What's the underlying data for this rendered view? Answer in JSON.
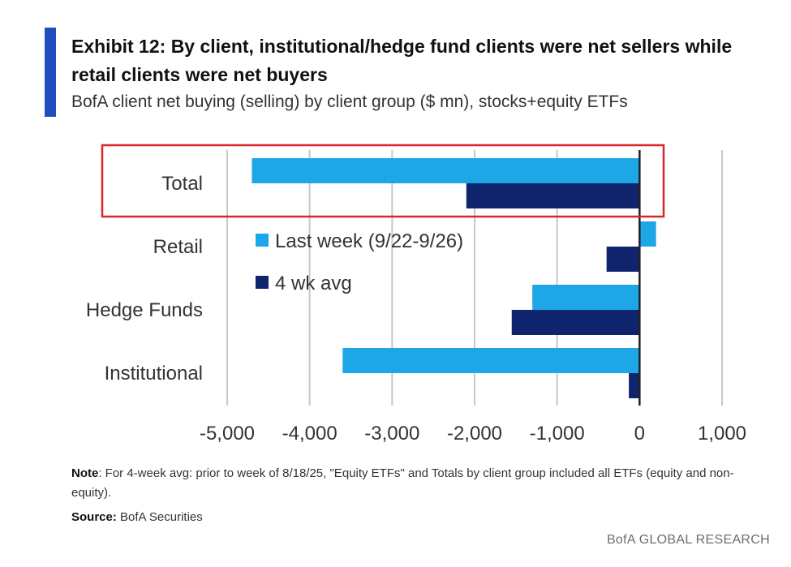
{
  "header": {
    "title": "Exhibit 12: By client, institutional/hedge fund clients were net sellers while retail clients were net buyers",
    "subtitle": "BofA client net buying (selling) by client group ($ mn), stocks+equity ETFs"
  },
  "colors": {
    "accent": "#1f4fbf",
    "last_week": "#1ea7e6",
    "four_wk_avg": "#10246e",
    "highlight_box": "#d9262c",
    "grid": "#c8c8c8"
  },
  "chart_data": {
    "type": "bar",
    "orientation": "horizontal",
    "categories": [
      "Total",
      "Retail",
      "Hedge Funds",
      "Institutional"
    ],
    "series": [
      {
        "name": "Last week (9/22-9/26)",
        "values": [
          -4700,
          200,
          -1300,
          -3600
        ]
      },
      {
        "name": "4 wk avg",
        "values": [
          -2100,
          -400,
          -1550,
          -130
        ]
      }
    ],
    "xlim": [
      -5000,
      1000
    ],
    "xticks": [
      -5000,
      -4000,
      -3000,
      -2000,
      -1000,
      0,
      1000
    ],
    "xtick_labels": [
      "-5,000",
      "-4,000",
      "-3,000",
      "-2,000",
      "-1,000",
      "0",
      "1,000"
    ],
    "grid": "vertical",
    "legend_position": "inside-left",
    "highlight_category": "Total"
  },
  "footer": {
    "note_label": "Note",
    "note_text": ": For 4-week avg: prior to week of 8/18/25, \"Equity ETFs\" and Totals by client group included all ETFs (equity and non-equity).",
    "source_label": "Source:",
    "source_text": " BofA Securities",
    "brand": "BofA GLOBAL RESEARCH"
  }
}
